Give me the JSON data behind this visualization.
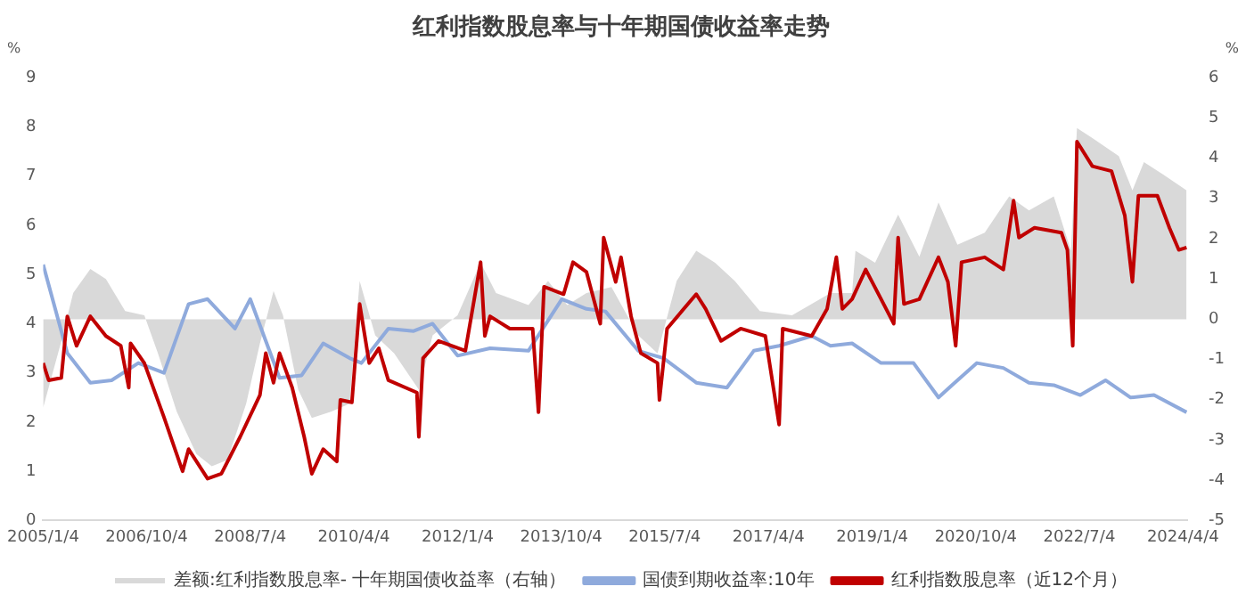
{
  "chart_data": {
    "type": "line",
    "title": "红利指数股息率与十年期国债收益率走势",
    "ylabel": "%",
    "y2label": "%",
    "xlim": [
      "2005-01-04",
      "2024-04-30"
    ],
    "xticks": [
      {
        "value": "2005-01-04",
        "label": "2005/1/4"
      },
      {
        "value": "2006-10-04",
        "label": "2006/10/4"
      },
      {
        "value": "2008-07-04",
        "label": "2008/7/4"
      },
      {
        "value": "2010-04-04",
        "label": "2010/4/4"
      },
      {
        "value": "2012-01-04",
        "label": "2012/1/4"
      },
      {
        "value": "2013-10-04",
        "label": "2013/10/4"
      },
      {
        "value": "2015-07-04",
        "label": "2015/7/4"
      },
      {
        "value": "2017-04-04",
        "label": "2017/4/4"
      },
      {
        "value": "2019-01-04",
        "label": "2019/1/4"
      },
      {
        "value": "2020-10-04",
        "label": "2020/10/4"
      },
      {
        "value": "2022-07-04",
        "label": "2022/7/4"
      },
      {
        "value": "2024-04-04",
        "label": "2024/4/4"
      }
    ],
    "ylim": [
      0,
      9
    ],
    "yticks": [
      0,
      1,
      2,
      3,
      4,
      5,
      6,
      7,
      8,
      9
    ],
    "y2lim": [
      -5,
      6
    ],
    "y2ticks": [
      -5,
      -4,
      -3,
      -2,
      -1,
      0,
      1,
      2,
      3,
      4,
      5,
      6
    ],
    "grid": false,
    "legend": "bottom",
    "marker": "none",
    "line_style": "solid",
    "series": [
      {
        "name": "差额:红利指数股息率- 十年期国债收益率（右轴）",
        "type": "area",
        "axis": "y2",
        "color": "#d9d9d9",
        "x": [
          "2005-01-04",
          "2005-04-26",
          "2005-07-08",
          "2005-10-22",
          "2006-01-26",
          "2006-05-25",
          "2006-09-20",
          "2006-12-13",
          "2007-04-08",
          "2007-08-07",
          "2007-11-10",
          "2008-02-14",
          "2008-06-09",
          "2008-09-02",
          "2008-11-25",
          "2009-01-22",
          "2009-04-26",
          "2009-07-19",
          "2009-11-14",
          "2010-03-09",
          "2010-05-10",
          "2010-08-14",
          "2010-12-09",
          "2011-05-10",
          "2011-08-03",
          "2012-01-04",
          "2012-05-25",
          "2012-08-28",
          "2013-03-16",
          "2013-07-15",
          "2013-11-10",
          "2014-03-09",
          "2014-08-10",
          "2015-01-22",
          "2015-05-21",
          "2015-09-16",
          "2016-01-15",
          "2016-05-10",
          "2016-09-09",
          "2017-02-10",
          "2017-08-28",
          "2018-04-22",
          "2018-09-02",
          "2018-09-23",
          "2019-01-22",
          "2019-06-13",
          "2019-10-22",
          "2020-02-17",
          "2020-06-13",
          "2020-11-28",
          "2021-04-28",
          "2021-08-28",
          "2022-01-28",
          "2022-05-14",
          "2022-06-20",
          "2022-09-23",
          "2023-03-05",
          "2023-05-28",
          "2023-08-07",
          "2023-12-02",
          "2024-04-26"
        ],
        "values": [
          -2.2,
          -0.55,
          0.65,
          1.25,
          1.0,
          0.2,
          0.1,
          -0.85,
          -2.3,
          -3.35,
          -3.65,
          -3.5,
          -2.1,
          -0.6,
          0.7,
          0.1,
          -1.75,
          -2.45,
          -2.3,
          -2.1,
          0.95,
          -0.4,
          -0.85,
          -1.75,
          -0.4,
          0.1,
          1.4,
          0.65,
          0.35,
          0.95,
          0.35,
          0.65,
          0.8,
          -0.4,
          -0.85,
          0.95,
          1.7,
          1.4,
          0.95,
          0.2,
          0.1,
          0.65,
          0.65,
          1.7,
          1.4,
          2.6,
          1.55,
          2.9,
          1.85,
          2.15,
          3.05,
          2.7,
          3.05,
          1.7,
          4.75,
          4.5,
          4.05,
          3.2,
          3.9,
          3.6,
          3.2
        ]
      },
      {
        "name": "国债到期收益率:10年",
        "color": "#8faadc",
        "x": [
          "2005-01-04",
          "2005-06-02",
          "2005-10-22",
          "2006-03-02",
          "2006-08-14",
          "2007-01-19",
          "2007-06-20",
          "2007-10-15",
          "2008-04-01",
          "2008-07-04",
          "2008-10-08",
          "2009-01-01",
          "2009-05-17",
          "2009-09-27",
          "2010-03-09",
          "2010-05-21",
          "2010-11-03",
          "2011-04-08",
          "2011-08-03",
          "2012-01-04",
          "2012-07-22",
          "2013-03-16",
          "2013-10-08",
          "2014-03-09",
          "2014-07-04",
          "2015-01-22",
          "2015-06-27",
          "2016-01-15",
          "2016-07-22",
          "2017-01-04",
          "2017-06-09",
          "2017-12-27",
          "2018-04-22",
          "2018-09-02",
          "2019-02-28",
          "2019-09-16",
          "2020-02-17",
          "2020-05-10",
          "2020-10-11",
          "2021-03-23",
          "2021-08-28",
          "2022-01-28",
          "2022-07-11",
          "2022-12-13",
          "2023-05-17",
          "2023-10-08",
          "2024-04-26"
        ],
        "values": [
          5.2,
          3.4,
          2.8,
          2.85,
          3.2,
          3.0,
          4.4,
          4.5,
          3.9,
          4.5,
          3.65,
          2.9,
          2.95,
          3.6,
          3.3,
          3.2,
          3.9,
          3.85,
          4.0,
          3.35,
          3.5,
          3.45,
          4.5,
          4.3,
          4.25,
          3.45,
          3.3,
          2.8,
          2.7,
          3.45,
          3.55,
          3.75,
          3.55,
          3.6,
          3.2,
          3.2,
          2.5,
          2.75,
          3.2,
          3.1,
          2.8,
          2.75,
          2.55,
          2.85,
          2.5,
          2.55,
          2.2
        ]
      },
      {
        "name": "红利指数股息率（近12个月）",
        "color": "#c00000",
        "x": [
          "2005-01-04",
          "2005-02-07",
          "2005-04-26",
          "2005-06-02",
          "2005-07-29",
          "2005-10-22",
          "2006-01-26",
          "2006-04-28",
          "2006-06-16",
          "2006-06-27",
          "2006-09-20",
          "2007-01-19",
          "2007-05-14",
          "2007-06-20",
          "2007-10-15",
          "2008-01-08",
          "2008-05-03",
          "2008-09-02",
          "2008-10-08",
          "2008-11-25",
          "2009-01-01",
          "2009-03-20",
          "2009-06-02",
          "2009-07-19",
          "2009-09-27",
          "2009-12-20",
          "2010-01-11",
          "2010-03-23",
          "2010-05-10",
          "2010-07-08",
          "2010-09-05",
          "2010-11-03",
          "2011-04-28",
          "2011-05-10",
          "2011-06-05",
          "2011-09-09",
          "2012-02-21",
          "2012-05-25",
          "2012-06-20",
          "2012-07-22",
          "2012-11-21",
          "2013-04-11",
          "2013-05-17",
          "2013-06-20",
          "2013-10-19",
          "2013-12-16",
          "2014-03-09",
          "2014-06-02",
          "2014-06-23",
          "2014-09-05",
          "2014-10-08",
          "2014-12-09",
          "2015-02-07",
          "2015-05-21",
          "2015-06-02",
          "2015-07-19",
          "2016-01-15",
          "2016-03-13",
          "2016-06-16",
          "2016-10-15",
          "2017-03-16",
          "2017-06-09",
          "2017-07-01",
          "2017-12-27",
          "2018-04-01",
          "2018-05-28",
          "2018-07-04",
          "2018-09-02",
          "2018-11-25",
          "2019-02-28",
          "2019-05-17",
          "2019-06-13",
          "2019-07-19",
          "2019-10-22",
          "2020-02-17",
          "2020-04-15",
          "2020-06-02",
          "2020-07-08",
          "2020-11-28",
          "2021-03-23",
          "2021-05-25",
          "2021-06-27",
          "2021-10-01",
          "2022-03-16",
          "2022-04-22",
          "2022-05-25",
          "2022-06-20",
          "2022-09-23",
          "2023-01-19",
          "2023-04-11",
          "2023-05-28",
          "2023-07-04",
          "2023-10-29",
          "2024-01-11",
          "2024-03-09",
          "2024-04-26"
        ],
        "values": [
          3.2,
          2.85,
          2.9,
          4.15,
          3.55,
          4.15,
          3.75,
          3.55,
          2.7,
          3.6,
          3.2,
          2.1,
          1.0,
          1.45,
          0.85,
          0.95,
          1.7,
          2.55,
          3.4,
          2.8,
          3.4,
          2.7,
          1.7,
          0.95,
          1.45,
          1.2,
          2.45,
          2.4,
          4.4,
          3.2,
          3.5,
          2.85,
          2.6,
          1.7,
          3.3,
          3.65,
          3.45,
          5.25,
          3.75,
          4.15,
          3.9,
          3.9,
          2.2,
          4.75,
          4.6,
          5.25,
          5.05,
          4.0,
          5.75,
          4.85,
          5.35,
          4.15,
          3.4,
          3.2,
          2.45,
          3.9,
          4.6,
          4.3,
          3.65,
          3.9,
          3.75,
          1.95,
          3.9,
          3.75,
          4.3,
          5.35,
          4.3,
          4.5,
          5.1,
          4.5,
          4.0,
          5.75,
          4.4,
          4.5,
          5.35,
          4.85,
          3.55,
          5.25,
          5.35,
          5.1,
          6.5,
          5.75,
          5.95,
          5.85,
          5.5,
          3.55,
          7.7,
          7.2,
          7.1,
          6.2,
          4.85,
          6.6,
          6.6,
          5.95,
          5.5,
          5.55
        ]
      }
    ]
  }
}
